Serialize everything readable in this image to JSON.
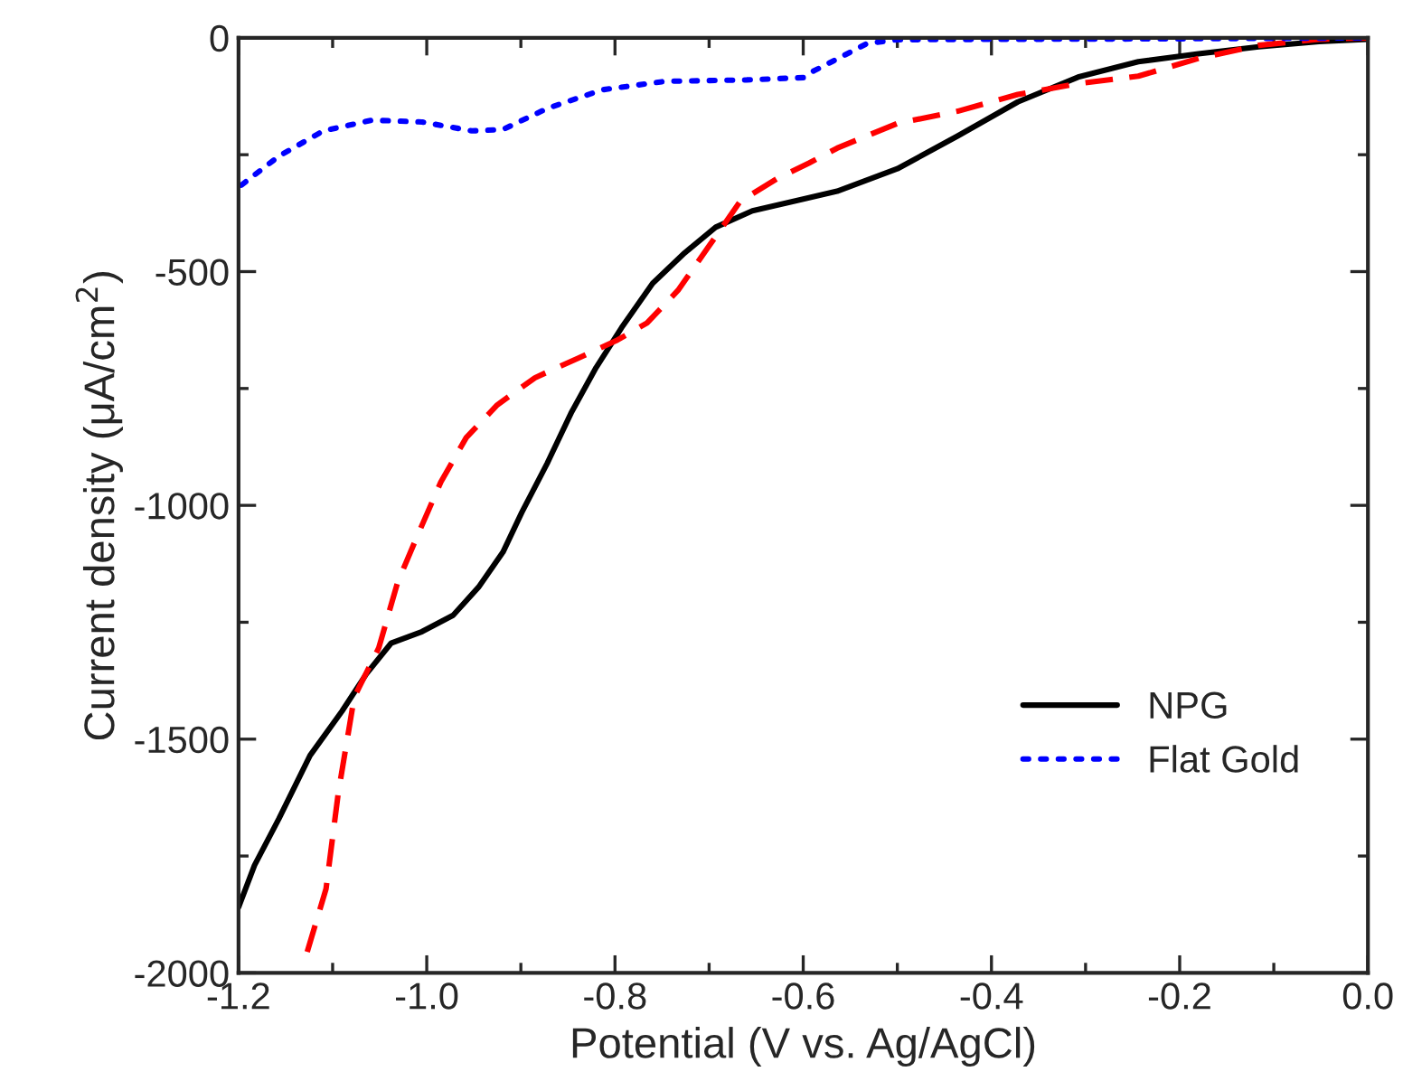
{
  "chart_data": {
    "type": "line",
    "xlabel": "Potential (V vs. Ag/AgCl)",
    "ylabel": "Current density (μA/cm$^{2}$)",
    "xlim": [
      -1.2,
      0.0
    ],
    "ylim": [
      -2000,
      0
    ],
    "xticks": [
      {
        "value": -1.2,
        "label": "-1.2"
      },
      {
        "value": -1.1,
        "label": null
      },
      {
        "value": -1.0,
        "label": "-1.0"
      },
      {
        "value": -0.9,
        "label": null
      },
      {
        "value": -0.8,
        "label": "-0.8"
      },
      {
        "value": -0.7,
        "label": null
      },
      {
        "value": -0.6,
        "label": "-0.6"
      },
      {
        "value": -0.5,
        "label": null
      },
      {
        "value": -0.4,
        "label": "-0.4"
      },
      {
        "value": -0.3,
        "label": null
      },
      {
        "value": -0.2,
        "label": "-0.2"
      },
      {
        "value": -0.1,
        "label": null
      },
      {
        "value": 0.0,
        "label": "0.0"
      }
    ],
    "yticks": [
      -2000,
      {
        "value": -1750,
        "label": null
      },
      -1500,
      {
        "value": -1250,
        "label": null
      },
      -1000,
      {
        "value": -750,
        "label": null
      },
      -500,
      {
        "value": -250,
        "label": null
      },
      0
    ],
    "grid": false,
    "legend": "bottom right",
    "series": [
      {
        "name": "NPG",
        "color": "#000000",
        "line_style": "solid",
        "x": [
          -1.2,
          -1.183,
          -1.157,
          -1.124,
          -1.09,
          -1.064,
          -1.038,
          -1.005,
          -0.972,
          -0.945,
          -0.919,
          -0.899,
          -0.872,
          -0.846,
          -0.82,
          -0.793,
          -0.76,
          -0.726,
          -0.693,
          -0.654,
          -0.6,
          -0.564,
          -0.5,
          -0.436,
          -0.372,
          -0.308,
          -0.244,
          -0.18,
          -0.116,
          -0.052,
          0.0
        ],
        "values": [
          -1860,
          -1770,
          -1670,
          -1535,
          -1440,
          -1360,
          -1295,
          -1270,
          -1235,
          -1175,
          -1100,
          -1015,
          -910,
          -800,
          -705,
          -620,
          -525,
          -460,
          -405,
          -370,
          -345,
          -328,
          -280,
          -210,
          -137,
          -84,
          -51,
          -34,
          -19,
          -8,
          -3
        ]
      },
      {
        "color": "#ff0000",
        "line_style": "dashed",
        "x": [
          -1.127,
          -1.107,
          -1.094,
          -1.077,
          -1.051,
          -1.031,
          -1.011,
          -0.985,
          -0.958,
          -0.925,
          -0.885,
          -0.839,
          -0.799,
          -0.766,
          -0.733,
          -0.7,
          -0.667,
          -0.627,
          -0.594,
          -0.564,
          -0.5,
          -0.436,
          -0.372,
          -0.308,
          -0.244,
          -0.18,
          -0.116,
          -0.052,
          0.0
        ],
        "values": [
          -1955,
          -1820,
          -1615,
          -1410,
          -1305,
          -1165,
          -1070,
          -950,
          -855,
          -785,
          -727,
          -685,
          -648,
          -610,
          -540,
          -445,
          -350,
          -300,
          -268,
          -236,
          -183,
          -157,
          -121,
          -98,
          -82,
          -44,
          -16,
          -3,
          0
        ]
      },
      {
        "name": "Flat Gold",
        "color": "#0000ff",
        "line_style": "dotted",
        "x": [
          -1.197,
          -1.157,
          -1.11,
          -1.058,
          -1.005,
          -0.952,
          -0.919,
          -0.872,
          -0.813,
          -0.747,
          -0.66,
          -0.6,
          -0.589,
          -0.557,
          -0.532,
          -0.5,
          -0.372,
          -0.2,
          0.0
        ],
        "values": [
          -315,
          -253,
          -199,
          -176,
          -180,
          -199,
          -196,
          -151,
          -111,
          -93,
          -90,
          -85,
          -71,
          -38,
          -12,
          -4,
          -3,
          -2,
          0
        ]
      }
    ]
  }
}
